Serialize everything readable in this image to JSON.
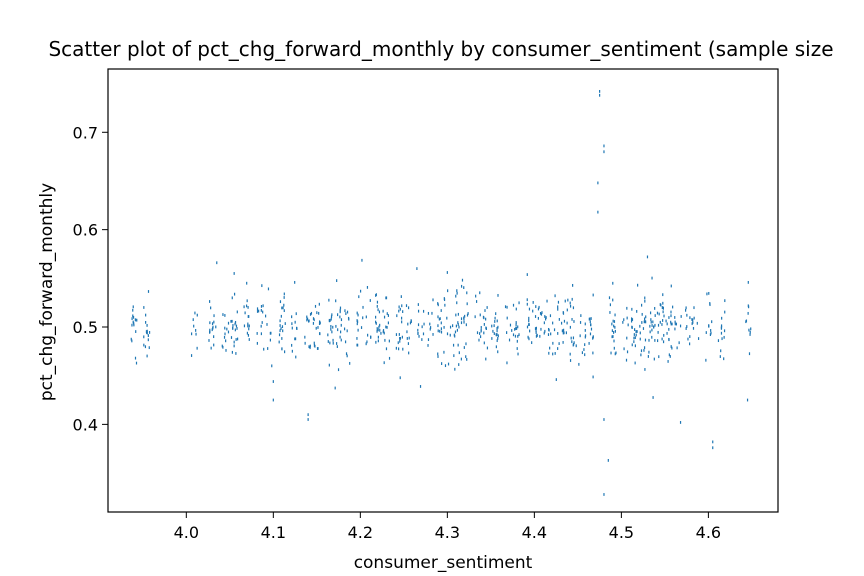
{
  "chart_data": {
    "type": "scatter",
    "title": "Scatter plot of pct_chg_forward_monthly by consumer_sentiment (sample size",
    "xlabel": "consumer_sentiment",
    "ylabel": "pct_chg_forward_monthly",
    "xlim": [
      3.91,
      4.68
    ],
    "ylim": [
      0.31,
      0.765
    ],
    "xticks": [
      4.0,
      4.1,
      4.2,
      4.3,
      4.4,
      4.5,
      4.6
    ],
    "yticks": [
      0.4,
      0.5,
      0.6,
      0.7
    ],
    "xtick_labels": [
      "4.0",
      "4.1",
      "4.2",
      "4.3",
      "4.4",
      "4.5",
      "4.6"
    ],
    "ytick_labels": [
      "0.4",
      "0.5",
      "0.6",
      "0.7"
    ],
    "grid": false,
    "color": "#1f77b4",
    "notable_points": [
      {
        "x": 4.475,
        "y": 0.742
      },
      {
        "x": 4.475,
        "y": 0.738
      },
      {
        "x": 4.48,
        "y": 0.686
      },
      {
        "x": 4.48,
        "y": 0.68
      },
      {
        "x": 4.473,
        "y": 0.648
      },
      {
        "x": 4.473,
        "y": 0.618
      },
      {
        "x": 4.53,
        "y": 0.572
      },
      {
        "x": 4.035,
        "y": 0.566
      },
      {
        "x": 4.265,
        "y": 0.56
      },
      {
        "x": 4.3,
        "y": 0.556
      },
      {
        "x": 4.055,
        "y": 0.555
      },
      {
        "x": 4.1,
        "y": 0.444
      },
      {
        "x": 4.14,
        "y": 0.41
      },
      {
        "x": 4.14,
        "y": 0.405
      },
      {
        "x": 4.48,
        "y": 0.405
      },
      {
        "x": 4.485,
        "y": 0.363
      },
      {
        "x": 4.48,
        "y": 0.328
      },
      {
        "x": 4.605,
        "y": 0.382
      },
      {
        "x": 4.605,
        "y": 0.376
      },
      {
        "x": 4.568,
        "y": 0.402
      },
      {
        "x": 4.645,
        "y": 0.425
      },
      {
        "x": 4.1,
        "y": 0.425
      }
    ],
    "cluster_x_values": [
      3.94,
      3.955,
      4.01,
      4.03,
      4.045,
      4.055,
      4.07,
      4.085,
      4.095,
      4.11,
      4.125,
      4.14,
      4.15,
      4.165,
      4.175,
      4.185,
      4.2,
      4.21,
      4.22,
      4.23,
      4.245,
      4.255,
      4.27,
      4.28,
      4.29,
      4.3,
      4.31,
      4.32,
      4.335,
      4.345,
      4.355,
      4.37,
      4.38,
      4.395,
      4.405,
      4.415,
      4.425,
      4.435,
      4.445,
      4.455,
      4.465,
      4.49,
      4.505,
      4.515,
      4.525,
      4.535,
      4.545,
      4.555,
      4.565,
      4.575,
      4.585,
      4.6,
      4.615,
      4.645
    ],
    "cluster_y_center": 0.5,
    "cluster_y_spread": 0.03
  }
}
